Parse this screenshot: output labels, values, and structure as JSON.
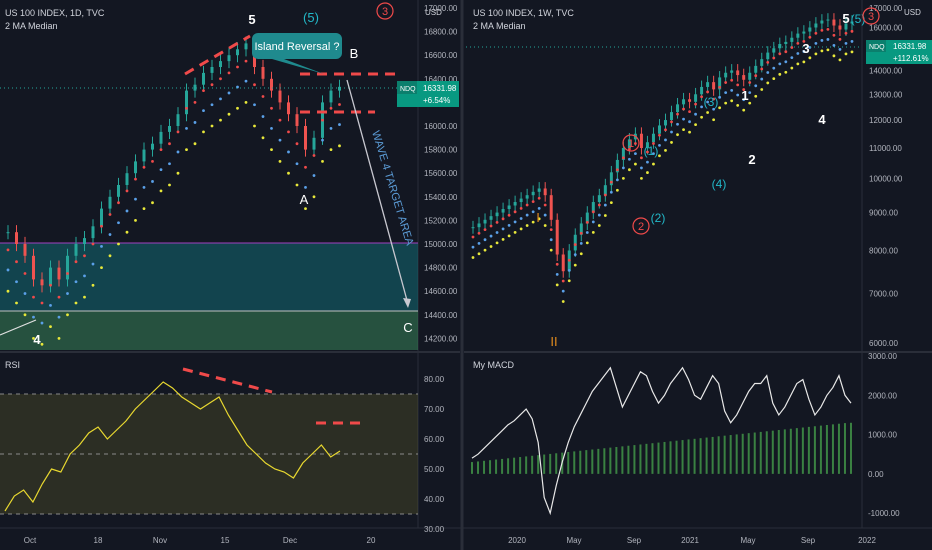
{
  "left": {
    "title": "US 100 INDEX, 1D, TVC",
    "subtitle": "2 MA Median",
    "currency": "USD",
    "price_axis": [
      "17000.00",
      "16800.00",
      "16600.00",
      "16400.00",
      "16200.00",
      "16000.00",
      "15800.00",
      "15600.00",
      "15400.00",
      "15200.00",
      "15000.00",
      "14800.00",
      "14600.00",
      "14400.00",
      "14200.00"
    ],
    "time_axis": [
      "Oct",
      "18",
      "Nov",
      "15",
      "Dec",
      "20"
    ],
    "ticker": {
      "symbol": "NDQ",
      "price": "16331.98",
      "change": "+6.54%"
    },
    "annotations": {
      "wave5": "5",
      "wave5_paren": "(5)",
      "circled3": "3",
      "B": "B",
      "A": "A",
      "C": "C",
      "wave4": "4",
      "island": "Island Reversal ?",
      "target": "WAVE 4 TARGET AREA"
    },
    "rsi": {
      "label": "RSI",
      "axis": [
        "80.00",
        "70.00",
        "60.00",
        "50.00",
        "40.00",
        "30.00"
      ]
    }
  },
  "right": {
    "title": "US 100 INDEX, 1W, TVC",
    "subtitle": "2 MA Median",
    "currency": "USD",
    "price_axis": [
      "17000.00",
      "16000.00",
      "15000.00",
      "14000.00",
      "13000.00",
      "12000.00",
      "11000.00",
      "10000.00",
      "9000.00",
      "8000.00",
      "7000.00",
      "6000.00"
    ],
    "time_axis": [
      "2020",
      "May",
      "Sep",
      "2021",
      "May",
      "Sep",
      "2022"
    ],
    "ticker": {
      "symbol": "NDQ",
      "price": "16331.98",
      "change": "+112.61%"
    },
    "annotations": {
      "I": "I",
      "II": "II",
      "c1": "1",
      "p1": "(1)",
      "p2": "(2)",
      "c2": "2",
      "p3": "(3)",
      "p4": "(4)",
      "w1": "1",
      "w2": "2",
      "w3": "3",
      "w4": "4",
      "w5": "5",
      "p5": "(5)",
      "c3": "3"
    },
    "macd": {
      "label": "My MACD",
      "axis": [
        "3000.00",
        "2000.00",
        "1000.00",
        "0.00",
        "-1000.00"
      ]
    }
  },
  "colors": {
    "bg": "#131722",
    "up": "#26a69a",
    "down": "#ef5350",
    "accent": "#2962ff",
    "badge": "#089981",
    "red": "#f04a4a",
    "yellow": "#e8e83a",
    "teal": "#22b8c8"
  },
  "chart_data": [
    {
      "type": "candlestick",
      "title": "US 100 INDEX, 1D, TVC",
      "ylim": [
        14200,
        17000
      ],
      "x_ticks": [
        "Oct",
        "18",
        "Nov",
        "15",
        "Dec",
        "20"
      ],
      "approx_close": [
        15100,
        15000,
        14900,
        14700,
        14650,
        14800,
        14700,
        14900,
        15000,
        15050,
        15150,
        15300,
        15400,
        15500,
        15600,
        15700,
        15800,
        15850,
        15950,
        16000,
        16100,
        16300,
        16350,
        16450,
        16500,
        16550,
        16600,
        16650,
        16700,
        16500,
        16400,
        16300,
        16200,
        16100,
        16000,
        15800,
        15900,
        16200,
        16300,
        16332
      ],
      "zones": [
        {
          "from": 14600,
          "to": 15050,
          "label": "WAVE 4 TARGET AREA"
        },
        {
          "from": 14200,
          "to": 14600
        }
      ]
    },
    {
      "type": "line",
      "title": "RSI",
      "ylim": [
        25,
        85
      ],
      "values": [
        36,
        41,
        43,
        39,
        45,
        50,
        49,
        55,
        58,
        62,
        64,
        60,
        63,
        66,
        70,
        73,
        76,
        79,
        77,
        74,
        72,
        70,
        72,
        74,
        68,
        63,
        58,
        55,
        52,
        50,
        49,
        47,
        52,
        55,
        58,
        54,
        56
      ]
    },
    {
      "type": "candlestick",
      "title": "US 100 INDEX, 1W, TVC",
      "ylim": [
        6000,
        17000
      ],
      "x_ticks": [
        "2020",
        "May",
        "Sep",
        "2021",
        "May",
        "Sep",
        "2022"
      ],
      "approx_close": [
        8600,
        8700,
        8800,
        8900,
        9000,
        9100,
        9200,
        9300,
        9400,
        9500,
        9600,
        9700,
        9500,
        8800,
        7900,
        7500,
        8000,
        8400,
        8700,
        9000,
        9300,
        9500,
        9800,
        10200,
        10600,
        11000,
        11300,
        11500,
        11000,
        11200,
        11500,
        11800,
        12000,
        12300,
        12600,
        12800,
        12700,
        13000,
        13300,
        13500,
        13200,
        13700,
        13900,
        14000,
        13800,
        13600,
        13900,
        14200,
        14500,
        14800,
        15000,
        15200,
        15300,
        15500,
        15700,
        15800,
        16000,
        16200,
        16350,
        16400,
        16100,
        15900,
        16200,
        16300
      ]
    },
    {
      "type": "line+bar",
      "title": "My MACD",
      "ylim": [
        -1200,
        3000
      ],
      "line": [
        400,
        500,
        650,
        800,
        950,
        1100,
        1250,
        1350,
        1500,
        1650,
        1400,
        800,
        -600,
        -1000,
        -300,
        300,
        800,
        1200,
        1500,
        1800,
        2100,
        2300,
        2500,
        2700,
        2200,
        1700,
        2000,
        2300,
        2600,
        2500,
        2100,
        1800,
        2000,
        2300,
        2500,
        2700,
        2400,
        2000,
        1900,
        2200,
        2500,
        2300,
        1600,
        1300,
        1500,
        1800,
        2100,
        2300,
        2300,
        2500,
        1800,
        1500,
        1700,
        2000,
        2300,
        2400,
        1900,
        1500,
        1700,
        2000,
        2200,
        2500,
        2000,
        1800
      ],
      "bars_range": [
        300,
        1300
      ]
    }
  ]
}
